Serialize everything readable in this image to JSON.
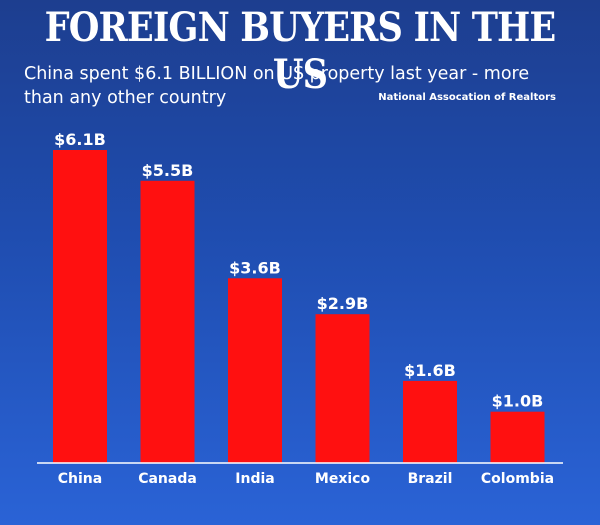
{
  "header": {
    "title": "FOREIGN BUYERS IN THE US",
    "subtitle": "China spent $6.1 BILLION on US property last year - more than any other country",
    "source": "National Assocation of Realtors"
  },
  "colors": {
    "bar": "#ff1010",
    "background_top": "#1d3e8f",
    "background_bottom": "#2a63d6",
    "text": "#ffffff"
  },
  "chart_data": {
    "type": "bar",
    "title": "FOREIGN BUYERS IN THE US",
    "subtitle": "China spent $6.1 BILLION on US property last year - more than any other country",
    "categories": [
      "China",
      "Canada",
      "India",
      "Mexico",
      "Brazil",
      "Colombia"
    ],
    "values": [
      6.1,
      5.5,
      3.6,
      2.9,
      1.6,
      1.0
    ],
    "value_labels": [
      "$6.1B",
      "$5.5B",
      "$3.6B",
      "$2.9B",
      "$1.6B",
      "$1.0B"
    ],
    "unit": "billion USD",
    "xlabel": "",
    "ylabel": "",
    "ylim": [
      0,
      6.1
    ],
    "grid": false,
    "legend": "none"
  }
}
